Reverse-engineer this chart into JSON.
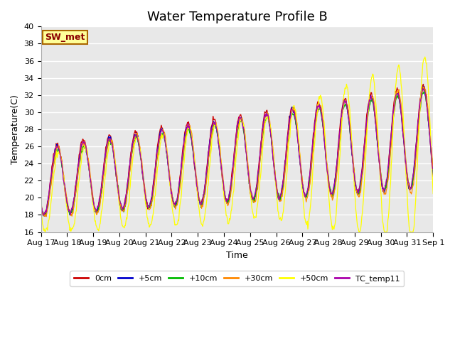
{
  "title": "Water Temperature Profile B",
  "xlabel": "Time",
  "ylabel": "Temperature(C)",
  "ylim": [
    16,
    40
  ],
  "yticks": [
    16,
    18,
    20,
    22,
    24,
    26,
    28,
    30,
    32,
    34,
    36,
    38,
    40
  ],
  "date_labels": [
    "Aug 17",
    "Aug 18",
    "Aug 19",
    "Aug 20",
    "Aug 21",
    "Aug 22",
    "Aug 23",
    "Aug 24",
    "Aug 25",
    "Aug 26",
    "Aug 27",
    "Aug 28",
    "Aug 29",
    "Aug 30",
    "Aug 31",
    "Sep 1"
  ],
  "series_colors": {
    "0cm": "#cc0000",
    "+5cm": "#0000cc",
    "+10cm": "#00bb00",
    "+30cm": "#ff8800",
    "+50cm": "#ffff00",
    "TC_temp11": "#aa00aa"
  },
  "series_labels": [
    "0cm",
    "+5cm",
    "+10cm",
    "+30cm",
    "+50cm",
    "TC_temp11"
  ],
  "legend_label": "SW_met",
  "legend_bg": "#ffff99",
  "legend_border": "#aa6600",
  "background_color": "#e8e8e8",
  "title_fontsize": 13,
  "axis_fontsize": 9,
  "tick_fontsize": 8
}
